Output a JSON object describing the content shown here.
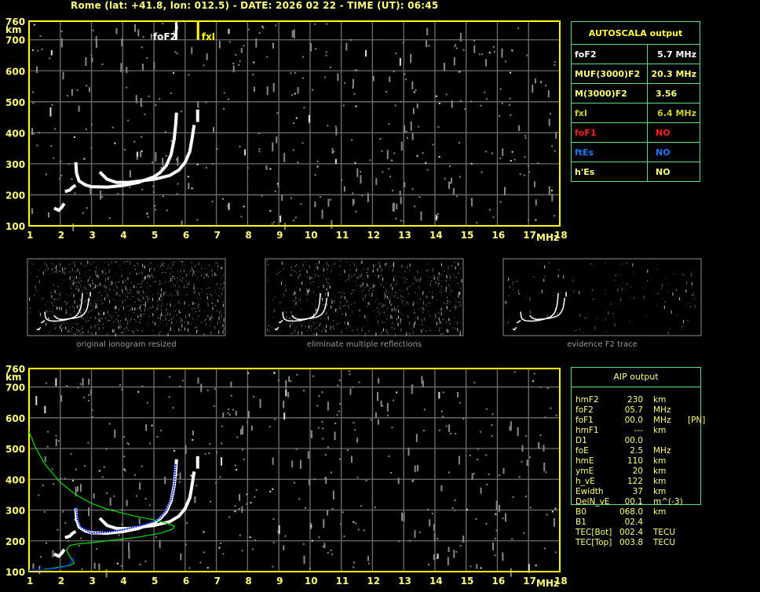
{
  "header": {
    "title": "Rome (lat: +41.8, lon: 012.5) - DATE: 2026 02 22 - TIME (UT): 06:45"
  },
  "colors": {
    "axis": "#ffff00",
    "grid": "#6e6e6e",
    "trace": "#ffffff",
    "profile": "#00e000",
    "fit": "#0020ff",
    "table_border": "#60e080"
  },
  "chart_data": [
    {
      "type": "scatter",
      "panel": "ionogram-autoscala",
      "xlabel": "MHz",
      "ylabel": "km",
      "xlim": [
        1,
        18
      ],
      "ylim": [
        100,
        760
      ],
      "xticks": [
        "1",
        "2",
        "3",
        "4",
        "5",
        "6",
        "7",
        "8",
        "9",
        "10",
        "11",
        "12",
        "13",
        "14",
        "15",
        "16",
        "17",
        "18"
      ],
      "yticks": [
        "100",
        "200",
        "300",
        "400",
        "500",
        "600",
        "700",
        "760"
      ],
      "grid": true,
      "markers": [
        {
          "label": "foF2",
          "x": 5.7,
          "color": "#ffffff"
        },
        {
          "label": "fxI",
          "x": 6.4,
          "color": "#ffff00"
        }
      ],
      "traces": [
        {
          "points": [
            [
              1.85,
              155
            ],
            [
              1.95,
              150
            ],
            [
              2.05,
              160
            ],
            [
              2.1,
              168
            ]
          ]
        },
        {
          "points": [
            [
              2.2,
              212
            ],
            [
              2.3,
              215
            ],
            [
              2.4,
              225
            ],
            [
              2.45,
              228
            ]
          ]
        },
        {
          "points": [
            [
              2.5,
              300
            ],
            [
              2.52,
              270
            ],
            [
              2.6,
              245
            ],
            [
              2.8,
              232
            ],
            [
              3,
              226
            ],
            [
              3.5,
              225
            ],
            [
              4,
              230
            ],
            [
              4.5,
              240
            ],
            [
              5,
              258
            ],
            [
              5.2,
              272
            ],
            [
              5.4,
              295
            ],
            [
              5.55,
              330
            ],
            [
              5.65,
              380
            ],
            [
              5.7,
              430
            ],
            [
              5.72,
              460
            ]
          ]
        },
        {
          "points": [
            [
              3.3,
              270
            ],
            [
              3.5,
              250
            ],
            [
              3.8,
              240
            ],
            [
              4.2,
              240
            ],
            [
              4.5,
              244
            ],
            [
              5,
              250
            ],
            [
              5.5,
              262
            ],
            [
              5.8,
              280
            ],
            [
              6,
              305
            ],
            [
              6.15,
              340
            ],
            [
              6.22,
              380
            ],
            [
              6.28,
              420
            ]
          ]
        },
        {
          "points": [
            [
              6.4,
              440
            ],
            [
              6.4,
              470
            ]
          ]
        }
      ]
    },
    {
      "type": "line",
      "panel": "ionogram-aip",
      "xlabel": "MHz",
      "ylabel": "km",
      "xlim": [
        1,
        18
      ],
      "ylim": [
        100,
        760
      ],
      "grid": true,
      "series": [
        {
          "role": "profile",
          "color": "#00e000",
          "points": [
            [
              1,
              555
            ],
            [
              1.2,
              505
            ],
            [
              1.5,
              450
            ],
            [
              2,
              390
            ],
            [
              2.5,
              350
            ],
            [
              3,
              322
            ],
            [
              3.5,
              303
            ],
            [
              4,
              290
            ],
            [
              4.5,
              278
            ],
            [
              5,
              268
            ],
            [
              5.4,
              258
            ],
            [
              5.65,
              248
            ],
            [
              5.6,
              238
            ],
            [
              5.2,
              225
            ],
            [
              4.5,
              212
            ],
            [
              4,
              206
            ],
            [
              3.5,
              200
            ],
            [
              3,
              194
            ],
            [
              2.5,
              189
            ],
            [
              2.3,
              185
            ],
            [
              2.2,
              170
            ],
            [
              2.3,
              150
            ],
            [
              2.45,
              128
            ],
            [
              2.3,
              120
            ],
            [
              2,
              115
            ],
            [
              1.7,
              110
            ],
            [
              1.5,
              108
            ]
          ]
        },
        {
          "role": "fit",
          "color": "#0020ff",
          "points": [
            [
              1,
              104
            ],
            [
              1.5,
              106
            ],
            [
              1.9,
              110
            ],
            [
              2.15,
              116
            ],
            [
              2.3,
              125
            ],
            [
              2.4,
              140
            ],
            [
              2.45,
              148
            ],
            null,
            [
              2.5,
              310
            ],
            [
              2.55,
              270
            ],
            [
              2.65,
              245
            ],
            [
              3,
              225
            ],
            [
              3.5,
              228
            ],
            [
              4,
              236
            ],
            [
              4.5,
              248
            ],
            [
              5,
              262
            ],
            [
              5.2,
              275
            ],
            [
              5.4,
              300
            ],
            [
              5.55,
              335
            ],
            [
              5.65,
              380
            ],
            [
              5.7,
              450
            ]
          ]
        }
      ]
    }
  ],
  "thumbnails": [
    {
      "caption": "original ionogram resized"
    },
    {
      "caption": "eliminate multiple reflections"
    },
    {
      "caption": "evidence F2 trace"
    }
  ],
  "autoscala": {
    "title": "AUTOSCALA output",
    "rows": [
      {
        "label": "foF2",
        "value": "5.7 MHz",
        "color": "#ffffff"
      },
      {
        "label": "MUF(3000)F2",
        "value": "20.3 MHz",
        "color": "#ffff80"
      },
      {
        "label": "M(3000)F2",
        "value": "3.56",
        "color": "#ffff80"
      },
      {
        "label": "fxI",
        "value": "6.4 MHz",
        "color": "#d0d020"
      },
      {
        "label": "foF1",
        "value": "NO",
        "color": "#ff2020"
      },
      {
        "label": "ftEs",
        "value": "NO",
        "color": "#1e78ff"
      },
      {
        "label": "h'Es",
        "value": "NO",
        "color": "#ffff80"
      }
    ]
  },
  "aip": {
    "title": "AIP output",
    "rows": [
      {
        "label": "hmF2",
        "value": "230",
        "unit": "km",
        "extra": ""
      },
      {
        "label": "foF2",
        "value": "05.7",
        "unit": "MHz",
        "extra": ""
      },
      {
        "label": "foF1",
        "value": "00.0",
        "unit": "MHz",
        "extra": "[PN]"
      },
      {
        "label": "hmF1",
        "value": "---",
        "unit": "km",
        "extra": ""
      },
      {
        "label": "D1",
        "value": "00.0",
        "unit": "",
        "extra": ""
      },
      {
        "label": "foE",
        "value": "2.5",
        "unit": "MHz",
        "extra": ""
      },
      {
        "label": "hmE",
        "value": "110",
        "unit": "km",
        "extra": ""
      },
      {
        "label": "ymE",
        "value": "20",
        "unit": "km",
        "extra": ""
      },
      {
        "label": "h_vE",
        "value": "122",
        "unit": "km",
        "extra": ""
      },
      {
        "label": "Ewidth",
        "value": "37",
        "unit": "km",
        "extra": ""
      },
      {
        "label": "DelN_vE",
        "value": "00.1",
        "unit": "m^(-3)",
        "extra": ""
      },
      {
        "label": "B0",
        "value": "068.0",
        "unit": "km",
        "extra": ""
      },
      {
        "label": "B1",
        "value": "02.4",
        "unit": "",
        "extra": ""
      },
      {
        "label": "TEC[Bot]",
        "value": "002.4",
        "unit": "TECU",
        "extra": ""
      },
      {
        "label": "TEC[Top]",
        "value": "003.8",
        "unit": "TECU",
        "extra": ""
      }
    ]
  }
}
